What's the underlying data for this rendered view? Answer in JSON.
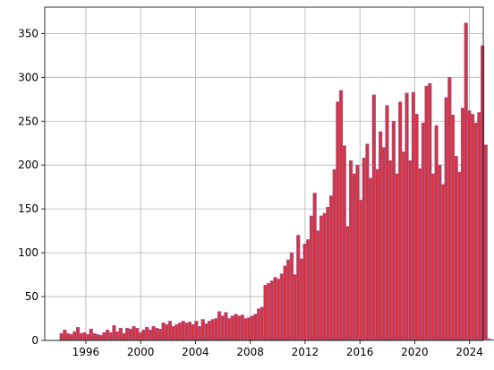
{
  "chart_data": {
    "type": "bar",
    "title": "",
    "xlabel": "",
    "ylabel": "",
    "xlim": [
      1993.0,
      2025.0
    ],
    "ylim": [
      0,
      380
    ],
    "x_ticks": [
      1996,
      2000,
      2004,
      2008,
      2012,
      2016,
      2020,
      2024
    ],
    "y_ticks": [
      0,
      50,
      100,
      150,
      200,
      250,
      300,
      350
    ],
    "grid": true,
    "bar_fill": "#e0303a",
    "bar_edge": "#6a78c4",
    "bin_width_years": 0.24,
    "bins_start": 1994.1,
    "values": [
      8,
      12,
      8,
      7,
      10,
      15,
      8,
      9,
      7,
      13,
      8,
      7,
      6,
      9,
      12,
      9,
      17,
      10,
      14,
      8,
      14,
      13,
      16,
      14,
      9,
      12,
      15,
      12,
      16,
      14,
      13,
      20,
      18,
      22,
      16,
      18,
      20,
      22,
      20,
      21,
      18,
      22,
      16,
      24,
      19,
      22,
      24,
      25,
      33,
      28,
      32,
      25,
      28,
      30,
      28,
      29,
      25,
      26,
      28,
      30,
      36,
      38,
      63,
      65,
      68,
      72,
      70,
      76,
      85,
      92,
      100,
      75,
      120,
      93,
      110,
      115,
      142,
      168,
      125,
      142,
      145,
      152,
      165,
      195,
      272,
      285,
      222,
      130,
      205,
      190,
      200,
      160,
      208,
      224,
      185,
      280,
      195,
      238,
      220,
      268,
      205,
      250,
      190,
      272,
      215,
      282,
      205,
      283,
      258,
      196,
      248,
      290,
      293,
      190,
      245,
      200,
      178,
      277,
      300,
      257,
      210,
      192,
      265,
      362,
      262,
      258,
      248,
      260,
      336,
      223,
      2,
      1
    ]
  }
}
